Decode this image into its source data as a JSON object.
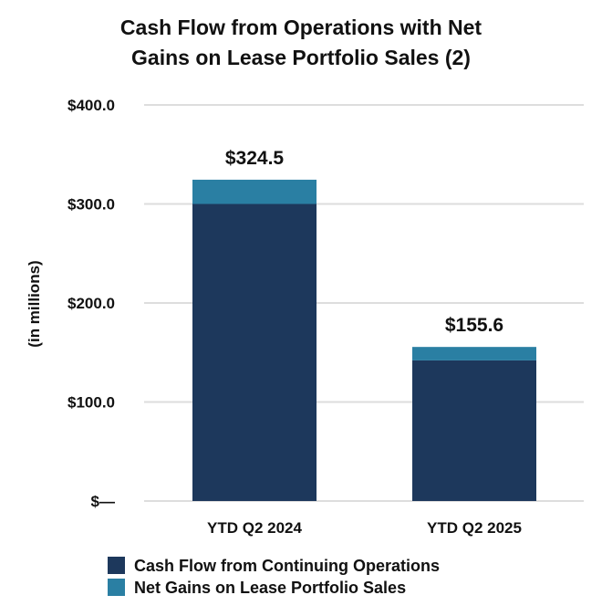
{
  "chart_data": {
    "type": "bar",
    "stacked": true,
    "title_lines": [
      "Cash Flow from Operations with Net",
      "Gains on Lease Portfolio Sales (2)"
    ],
    "ylabel": "(in millions)",
    "xlabel": "",
    "categories": [
      "YTD Q2 2024",
      "YTD Q2 2025"
    ],
    "series": [
      {
        "name": "Cash Flow from Continuing Operations",
        "color": "#1d385c",
        "values": [
          300.0,
          142.0
        ]
      },
      {
        "name": "Net Gains on Lease Portfolio Sales",
        "color": "#2a7fa3",
        "values": [
          24.5,
          13.6
        ]
      }
    ],
    "totals": [
      "$324.5",
      "$155.6"
    ],
    "ylim": [
      0,
      400
    ],
    "yticks": [
      0,
      100,
      200,
      300,
      400
    ],
    "ytick_labels": [
      "$—",
      "$100.0",
      "$200.0",
      "$300.0",
      "$400.0"
    ],
    "grid": true,
    "legend_position": "bottom"
  }
}
